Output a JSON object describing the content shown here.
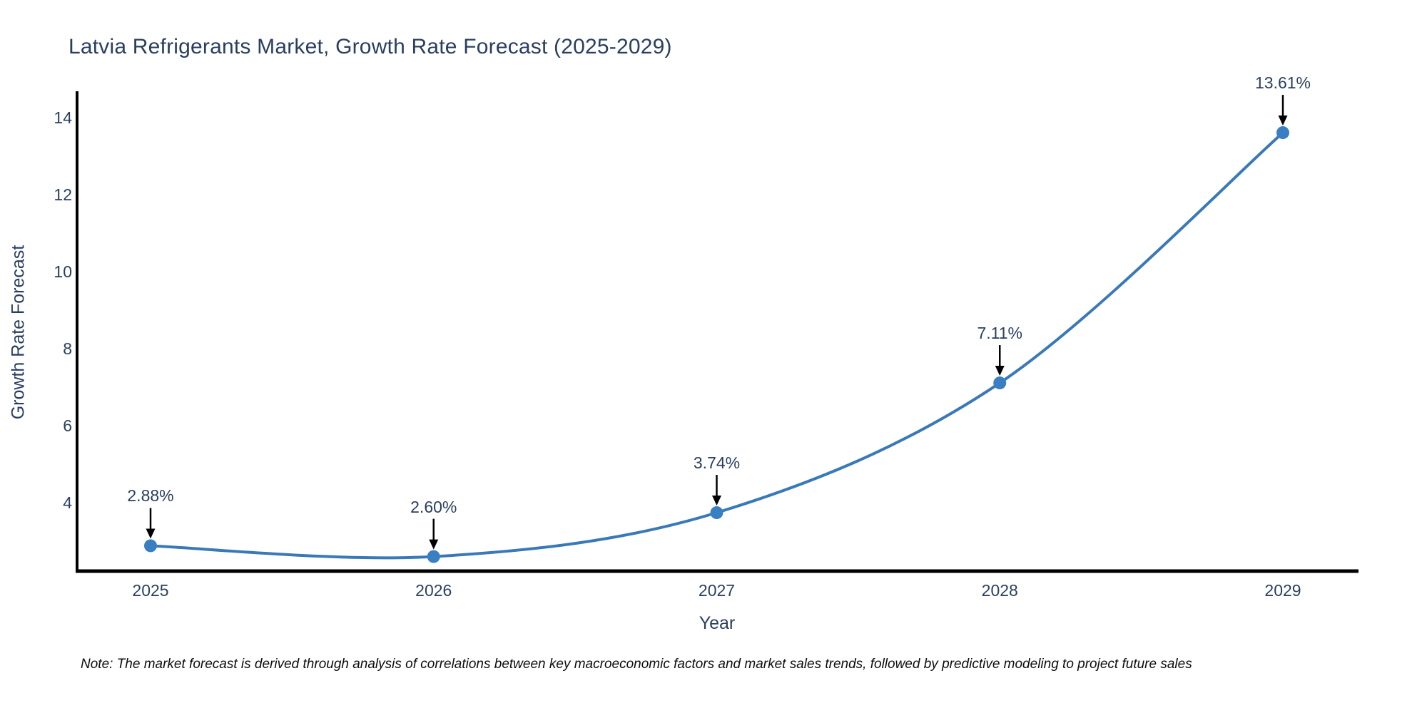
{
  "page": {
    "background": "#ffffff"
  },
  "chart_data": {
    "type": "line",
    "title": "Latvia Refrigerants Market, Growth Rate Forecast (2025-2029)",
    "xlabel": "Year",
    "ylabel": "Growth Rate Forecast",
    "categories": [
      "2025",
      "2026",
      "2027",
      "2028",
      "2029"
    ],
    "series": [
      {
        "name": "Growth Rate Forecast",
        "values": [
          2.88,
          2.6,
          3.74,
          7.11,
          13.61
        ]
      }
    ],
    "point_labels": [
      "2.88%",
      "2.60%",
      "3.74%",
      "7.11%",
      "13.61%"
    ],
    "yticks": [
      4,
      6,
      8,
      10,
      12,
      14
    ],
    "ylim": [
      2.2,
      14.7
    ],
    "line_shape": "spline",
    "grid": false,
    "legend_position": "none",
    "annotations": "black arrows from each label down to its data point",
    "colors": {
      "line": "#3a79b8",
      "marker": "#3a7fc2",
      "text": "#2a3f5f",
      "axis": "#000000",
      "arrow": "#000000",
      "note_text": "#0d0d0d",
      "background": "#ffffff"
    }
  },
  "note": {
    "text": "Note: The market forecast is derived through analysis of correlations between key macroeconomic factors and market sales trends, followed by predictive modeling to project future sales"
  }
}
